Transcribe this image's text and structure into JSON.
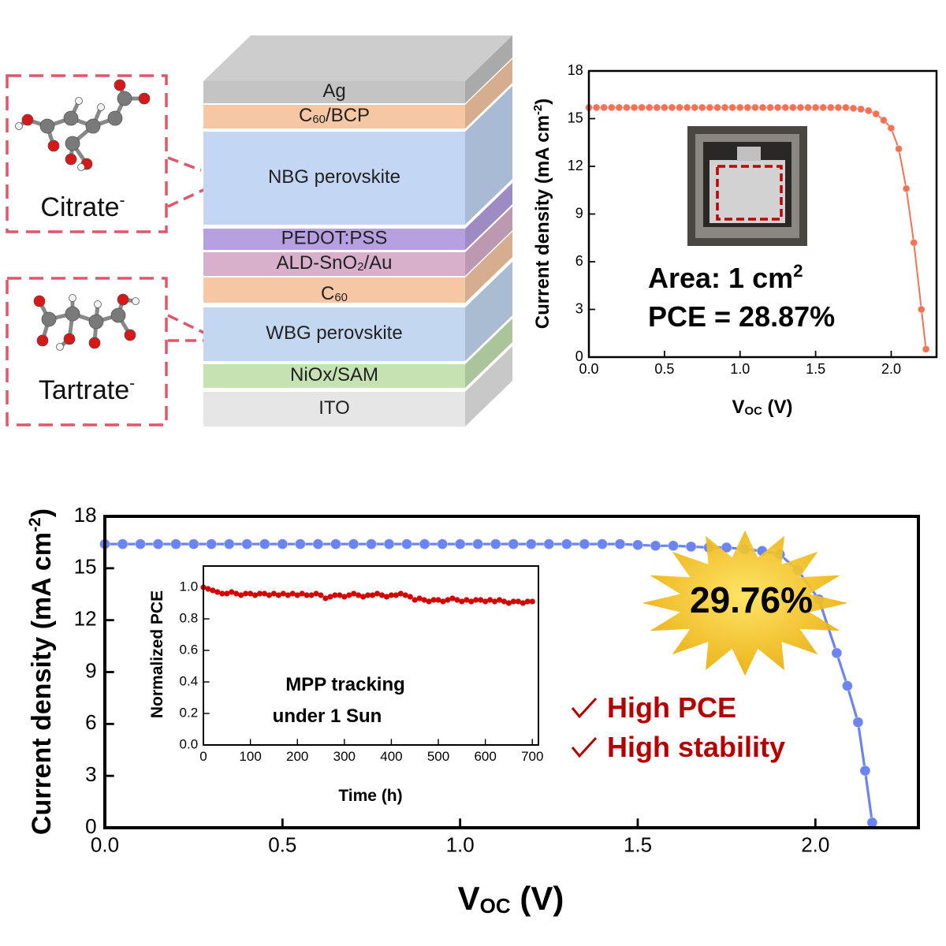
{
  "diagram": {
    "layers": [
      {
        "label": [
          "Ag"
        ],
        "color": "#c4c4c4"
      },
      {
        "label": [
          "C",
          "60",
          "/BCP"
        ],
        "color": "#f6c7a4"
      },
      {
        "label": [
          "NBG perovskite"
        ],
        "color": "#c3d6f4"
      },
      {
        "label": [
          "PEDOT:PSS"
        ],
        "color": "#b7a0e2"
      },
      {
        "label": [
          "ALD-SnO",
          "2",
          "/Au"
        ],
        "color": "#d8b0cb"
      },
      {
        "label": [
          "C",
          "60"
        ],
        "color": "#f6c7a4"
      },
      {
        "label": [
          "WBG perovskite"
        ],
        "color": "#c3d8f0"
      },
      {
        "label": [
          "NiOx/SAM"
        ],
        "color": "#c6e2b2"
      },
      {
        "label": [
          "ITO"
        ],
        "color": "#e6e6e6"
      }
    ],
    "molecules": [
      {
        "label": [
          "Citrate",
          "-"
        ]
      },
      {
        "label": [
          "Tartrate",
          "-"
        ]
      }
    ]
  },
  "chart_data": [
    {
      "type": "line",
      "color": "#f27256",
      "x": [
        0,
        0.05,
        0.1,
        0.15,
        0.2,
        0.25,
        0.3,
        0.35,
        0.4,
        0.45,
        0.5,
        0.55,
        0.6,
        0.65,
        0.7,
        0.75,
        0.8,
        0.85,
        0.9,
        0.95,
        1,
        1.05,
        1.1,
        1.15,
        1.2,
        1.25,
        1.3,
        1.35,
        1.4,
        1.45,
        1.5,
        1.55,
        1.6,
        1.65,
        1.7,
        1.75,
        1.8,
        1.85,
        1.9,
        1.95,
        2,
        2.05,
        2.1,
        2.15,
        2.2,
        2.23
      ],
      "values": [
        15.7,
        15.7,
        15.7,
        15.7,
        15.7,
        15.7,
        15.7,
        15.7,
        15.7,
        15.7,
        15.7,
        15.7,
        15.7,
        15.7,
        15.7,
        15.7,
        15.7,
        15.7,
        15.7,
        15.7,
        15.7,
        15.7,
        15.7,
        15.7,
        15.7,
        15.7,
        15.7,
        15.7,
        15.7,
        15.7,
        15.7,
        15.7,
        15.7,
        15.7,
        15.7,
        15.65,
        15.6,
        15.5,
        15.3,
        14.9,
        14.4,
        13.1,
        10.6,
        7.2,
        3.0,
        0.5
      ],
      "xlim": [
        0,
        2.3
      ],
      "ylim": [
        0,
        18
      ],
      "xticks": [
        {
          "value": 0,
          "label": "0.0"
        },
        0.5,
        {
          "value": 1,
          "label": "1.0"
        },
        1.5,
        {
          "value": 2,
          "label": "2.0"
        }
      ],
      "yticks": [
        0,
        3,
        6,
        9,
        12,
        15,
        18
      ],
      "x_label": [
        "V",
        "OC",
        " (V)"
      ],
      "y_label": [
        "Current density (mA cm",
        "-2",
        ")"
      ],
      "annotations": [
        [
          "Area: 1 cm",
          "2"
        ],
        [
          "PCE = 28.87%"
        ]
      ]
    },
    {
      "type": "line",
      "color": "#6b84ef",
      "x": [
        0,
        0.05,
        0.1,
        0.15,
        0.2,
        0.25,
        0.3,
        0.35,
        0.4,
        0.45,
        0.5,
        0.55,
        0.6,
        0.65,
        0.7,
        0.75,
        0.8,
        0.85,
        0.9,
        0.95,
        1,
        1.05,
        1.1,
        1.15,
        1.2,
        1.25,
        1.3,
        1.35,
        1.4,
        1.45,
        1.5,
        1.55,
        1.6,
        1.65,
        1.7,
        1.75,
        1.8,
        1.85,
        1.9,
        1.95,
        2.01,
        2.06,
        2.09,
        2.12,
        2.14,
        2.16
      ],
      "values": [
        16.4,
        16.4,
        16.4,
        16.4,
        16.4,
        16.4,
        16.4,
        16.4,
        16.4,
        16.4,
        16.4,
        16.4,
        16.4,
        16.4,
        16.4,
        16.4,
        16.4,
        16.4,
        16.4,
        16.4,
        16.4,
        16.4,
        16.4,
        16.4,
        16.4,
        16.4,
        16.4,
        16.4,
        16.4,
        16.4,
        16.35,
        16.3,
        16.3,
        16.25,
        16.2,
        16.2,
        16.1,
        16.0,
        15.8,
        14.9,
        13.2,
        10.1,
        8.2,
        6.1,
        3.3,
        0.3
      ],
      "xlim": [
        0,
        2.29
      ],
      "ylim": [
        0,
        18
      ],
      "xticks": [
        {
          "value": 0,
          "label": "0.0"
        },
        0.5,
        {
          "value": 1,
          "label": "1.0"
        },
        1.5,
        {
          "value": 2,
          "label": "2.0"
        }
      ],
      "yticks": [
        0,
        3,
        6,
        9,
        12,
        15,
        18
      ],
      "x_label": [
        "V",
        "OC",
        " (V)"
      ],
      "y_label": [
        "Current density (mA cm",
        "-2",
        ")"
      ],
      "annotations": [
        [
          "29.76%"
        ],
        [
          "High PCE"
        ],
        [
          "High stability"
        ]
      ]
    },
    {
      "type": "scatter",
      "color": "#d40000",
      "x": [
        0,
        10,
        20,
        30,
        40,
        50,
        60,
        70,
        80,
        90,
        100,
        110,
        120,
        130,
        140,
        150,
        160,
        170,
        180,
        190,
        200,
        210,
        220,
        230,
        240,
        250,
        260,
        270,
        280,
        290,
        300,
        310,
        320,
        330,
        340,
        350,
        360,
        370,
        380,
        390,
        400,
        410,
        420,
        430,
        440,
        450,
        460,
        470,
        480,
        490,
        500,
        510,
        520,
        530,
        540,
        550,
        560,
        570,
        580,
        590,
        600,
        610,
        620,
        630,
        640,
        650,
        660,
        670,
        680,
        690,
        700
      ],
      "values": [
        1.0,
        0.99,
        0.98,
        0.97,
        0.96,
        0.96,
        0.97,
        0.96,
        0.95,
        0.96,
        0.96,
        0.95,
        0.96,
        0.96,
        0.95,
        0.96,
        0.95,
        0.96,
        0.95,
        0.96,
        0.95,
        0.96,
        0.95,
        0.95,
        0.96,
        0.95,
        0.93,
        0.94,
        0.95,
        0.95,
        0.94,
        0.95,
        0.96,
        0.95,
        0.94,
        0.95,
        0.95,
        0.96,
        0.95,
        0.94,
        0.95,
        0.95,
        0.96,
        0.95,
        0.94,
        0.92,
        0.93,
        0.92,
        0.91,
        0.92,
        0.92,
        0.91,
        0.92,
        0.93,
        0.92,
        0.91,
        0.92,
        0.91,
        0.92,
        0.92,
        0.91,
        0.92,
        0.91,
        0.92,
        0.91,
        0.9,
        0.91,
        0.91,
        0.9,
        0.91,
        0.91
      ],
      "xlim": [
        0,
        713
      ],
      "ylim": [
        0,
        1.135
      ],
      "xticks": [
        0,
        100,
        200,
        300,
        400,
        500,
        600,
        700
      ],
      "yticks": [
        {
          "value": 0,
          "label": "0.0"
        },
        0.2,
        0.4,
        0.6,
        0.8,
        {
          "value": 1,
          "label": "1.0"
        }
      ],
      "x_label": [
        "Time (h)"
      ],
      "y_label": [
        "Normalized PCE"
      ],
      "annotations": [
        [
          "MPP tracking"
        ],
        [
          "under 1 Sun"
        ]
      ]
    }
  ]
}
